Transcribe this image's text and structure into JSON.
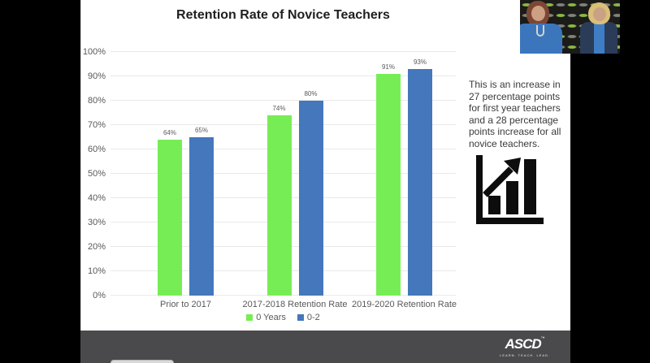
{
  "slide": {
    "note": "This is an increase in 27 percentage points for first year teachers and a 28 percentage points increase for all novice teachers."
  },
  "chart_data": {
    "type": "bar",
    "title": "Retention Rate of Novice Teachers",
    "categories": [
      "Prior to 2017",
      "2017-2018 Retention Rate",
      "2019-2020 Retention Rate"
    ],
    "series": [
      {
        "name": "0 Years",
        "color": "#77ed55",
        "values": [
          64,
          74,
          91
        ],
        "labels": [
          "64%",
          "74%",
          "91%"
        ]
      },
      {
        "name": "0-2",
        "color": "#4477bc",
        "values": [
          65,
          80,
          93
        ],
        "labels": [
          "65%",
          "80%",
          "93%"
        ]
      }
    ],
    "xlabel": "",
    "ylabel": "",
    "ylim": [
      0,
      100
    ],
    "yticks": [
      0,
      10,
      20,
      30,
      40,
      50,
      60,
      70,
      80,
      90,
      100
    ],
    "ytick_suffix": "%",
    "grid": true,
    "legend_position": "bottom",
    "value_label_color": "#595959",
    "axis_text_color": "#595959"
  },
  "footer": {
    "brand": "ASCD",
    "brand_mark": "™",
    "tagline": "LEARN. TEACH. LEAD."
  }
}
